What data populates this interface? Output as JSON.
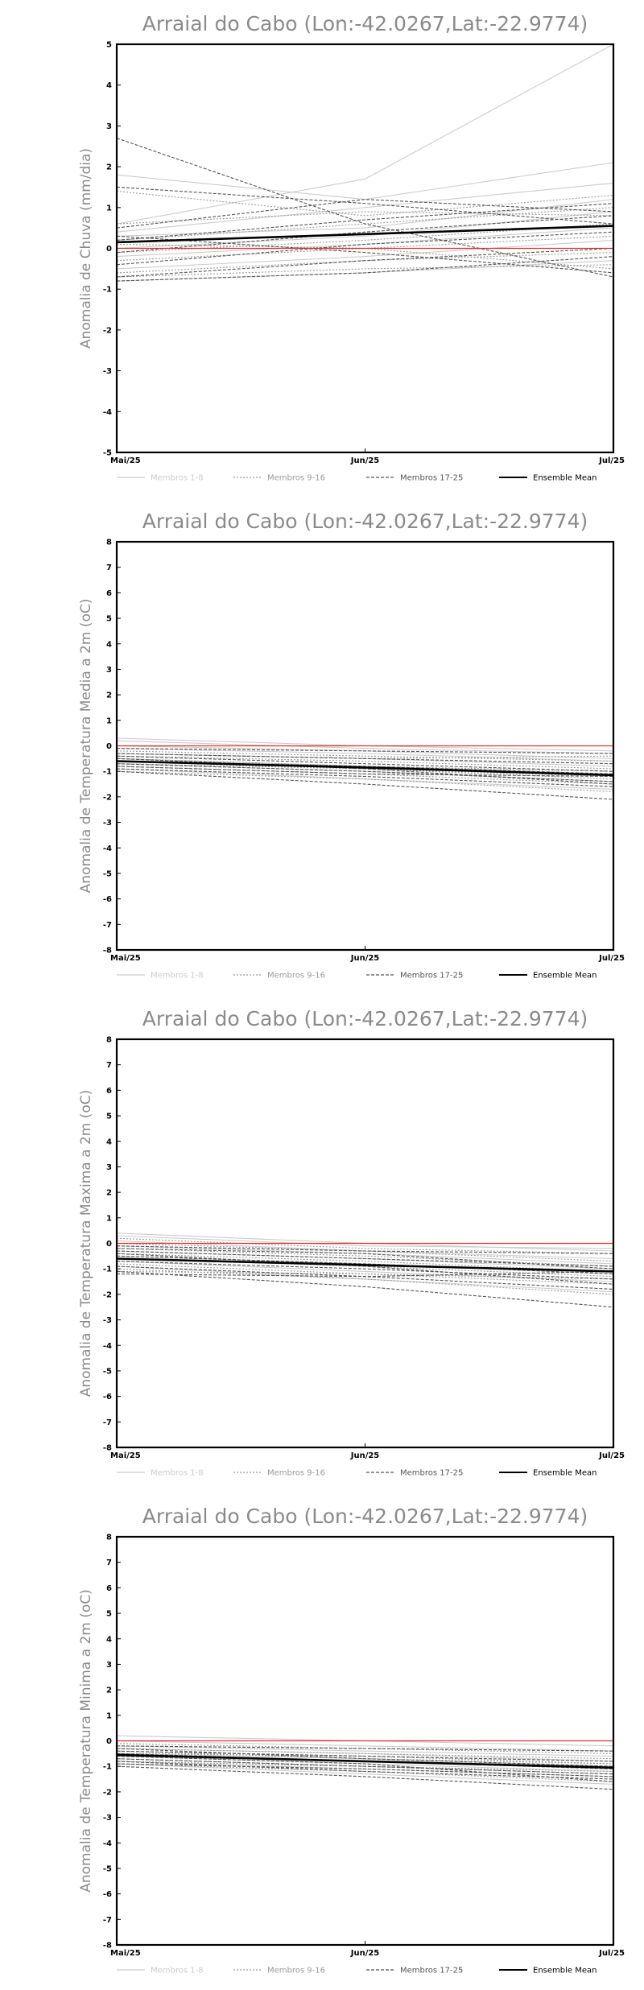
{
  "legend": {
    "items": [
      {
        "label": "Membros 1-8",
        "color": "#cccccc",
        "dash": "none"
      },
      {
        "label": "Membros 9-16",
        "color": "#9a9a9a",
        "dash": "2,2"
      },
      {
        "label": "Membros 17-25",
        "color": "#555555",
        "dash": "4,2"
      },
      {
        "label": "Ensemble Mean",
        "color": "#000000",
        "dash": "none"
      }
    ]
  },
  "chart_data": [
    {
      "type": "line",
      "title": "Arraial do Cabo (Lon:-42.0267,Lat:-22.9774)",
      "ylabel": "Anomalia de Chuva (mm/dia)",
      "categories": [
        "Mai/25",
        "Jun/25",
        "Jul/25"
      ],
      "ylim": [
        -5,
        5
      ],
      "yticks": [
        -5,
        -4,
        -3,
        -2,
        -1,
        0,
        1,
        2,
        3,
        4,
        5
      ],
      "zero_line_color": "#e03030",
      "series": [
        {
          "group": 1,
          "values": [
            0.6,
            1.7,
            5.0
          ]
        },
        {
          "group": 1,
          "values": [
            1.8,
            1.2,
            2.1
          ]
        },
        {
          "group": 1,
          "values": [
            0.4,
            1.0,
            1.6
          ]
        },
        {
          "group": 1,
          "values": [
            0.3,
            0.5,
            1.2
          ]
        },
        {
          "group": 1,
          "values": [
            0.0,
            0.3,
            0.9
          ]
        },
        {
          "group": 1,
          "values": [
            -0.2,
            0.1,
            0.5
          ]
        },
        {
          "group": 1,
          "values": [
            -0.5,
            -0.2,
            0.2
          ]
        },
        {
          "group": 1,
          "values": [
            -0.8,
            -0.6,
            -0.3
          ]
        },
        {
          "group": 2,
          "values": [
            1.4,
            0.8,
            1.3
          ]
        },
        {
          "group": 2,
          "values": [
            0.6,
            0.9,
            0.8
          ]
        },
        {
          "group": 2,
          "values": [
            0.2,
            0.6,
            1.0
          ]
        },
        {
          "group": 2,
          "values": [
            -0.1,
            0.2,
            0.6
          ]
        },
        {
          "group": 2,
          "values": [
            -0.3,
            0.0,
            0.3
          ]
        },
        {
          "group": 2,
          "values": [
            -0.6,
            -0.3,
            -0.1
          ]
        },
        {
          "group": 2,
          "values": [
            -0.7,
            -0.5,
            -0.4
          ]
        },
        {
          "group": 2,
          "values": [
            0.1,
            0.0,
            -0.5
          ]
        },
        {
          "group": 3,
          "values": [
            2.7,
            0.6,
            -0.7
          ]
        },
        {
          "group": 3,
          "values": [
            1.5,
            1.1,
            0.6
          ]
        },
        {
          "group": 3,
          "values": [
            0.5,
            1.2,
            0.9
          ]
        },
        {
          "group": 3,
          "values": [
            0.2,
            0.7,
            1.1
          ]
        },
        {
          "group": 3,
          "values": [
            -0.1,
            0.4,
            0.8
          ]
        },
        {
          "group": 3,
          "values": [
            -0.4,
            0.1,
            0.4
          ]
        },
        {
          "group": 3,
          "values": [
            -0.7,
            -0.3,
            0.0
          ]
        },
        {
          "group": 3,
          "values": [
            0.3,
            -0.1,
            -0.6
          ]
        },
        {
          "group": 3,
          "values": [
            -0.8,
            -0.6,
            -0.2
          ]
        },
        {
          "group": 4,
          "values": [
            0.15,
            0.35,
            0.55
          ]
        }
      ]
    },
    {
      "type": "line",
      "title": "Arraial do Cabo (Lon:-42.0267,Lat:-22.9774)",
      "ylabel": "Anomalia de Temperatura Media a 2m (oC)",
      "categories": [
        "Mai/25",
        "Jun/25",
        "Jul/25"
      ],
      "ylim": [
        -8,
        8
      ],
      "yticks": [
        -8,
        -7,
        -6,
        -5,
        -4,
        -3,
        -2,
        -1,
        0,
        1,
        2,
        3,
        4,
        5,
        6,
        7,
        8
      ],
      "zero_line_color": "#e03030",
      "series": [
        {
          "group": 1,
          "values": [
            0.3,
            0.0,
            -0.2
          ]
        },
        {
          "group": 1,
          "values": [
            0.2,
            -0.1,
            -0.3
          ]
        },
        {
          "group": 1,
          "values": [
            0.0,
            -0.2,
            -0.5
          ]
        },
        {
          "group": 1,
          "values": [
            -0.1,
            -0.3,
            -0.6
          ]
        },
        {
          "group": 1,
          "values": [
            -0.3,
            -0.5,
            -0.8
          ]
        },
        {
          "group": 1,
          "values": [
            -0.5,
            -0.8,
            -1.1
          ]
        },
        {
          "group": 1,
          "values": [
            -0.7,
            -1.0,
            -1.4
          ]
        },
        {
          "group": 1,
          "values": [
            -0.9,
            -1.3,
            -1.7
          ]
        },
        {
          "group": 2,
          "values": [
            -0.2,
            -0.4,
            -0.6
          ]
        },
        {
          "group": 2,
          "values": [
            -0.4,
            -0.6,
            -0.9
          ]
        },
        {
          "group": 2,
          "values": [
            -0.5,
            -0.8,
            -1.0
          ]
        },
        {
          "group": 2,
          "values": [
            -0.6,
            -0.9,
            -1.2
          ]
        },
        {
          "group": 2,
          "values": [
            -0.8,
            -1.1,
            -1.5
          ]
        },
        {
          "group": 2,
          "values": [
            -1.0,
            -1.3,
            -1.8
          ]
        },
        {
          "group": 2,
          "values": [
            -0.3,
            -0.5,
            -0.4
          ]
        },
        {
          "group": 2,
          "values": [
            -0.7,
            -0.9,
            -1.3
          ]
        },
        {
          "group": 3,
          "values": [
            -0.1,
            -0.2,
            -0.3
          ]
        },
        {
          "group": 3,
          "values": [
            -0.3,
            -0.5,
            -0.7
          ]
        },
        {
          "group": 3,
          "values": [
            -0.4,
            -0.7,
            -1.0
          ]
        },
        {
          "group": 3,
          "values": [
            -0.6,
            -0.8,
            -1.1
          ]
        },
        {
          "group": 3,
          "values": [
            -0.7,
            -1.0,
            -1.4
          ]
        },
        {
          "group": 3,
          "values": [
            -0.9,
            -1.2,
            -1.6
          ]
        },
        {
          "group": 3,
          "values": [
            -1.0,
            -1.5,
            -2.1
          ]
        },
        {
          "group": 3,
          "values": [
            -0.5,
            -0.9,
            -1.5
          ]
        },
        {
          "group": 3,
          "values": [
            -0.8,
            -1.1,
            -1.2
          ]
        },
        {
          "group": 4,
          "values": [
            -0.6,
            -0.85,
            -1.15
          ]
        }
      ]
    },
    {
      "type": "line",
      "title": "Arraial do Cabo (Lon:-42.0267,Lat:-22.9774)",
      "ylabel": "Anomalia de Temperatura Maxima a 2m (oC)",
      "categories": [
        "Mai/25",
        "Jun/25",
        "Jul/25"
      ],
      "ylim": [
        -8,
        8
      ],
      "yticks": [
        -8,
        -7,
        -6,
        -5,
        -4,
        -3,
        -2,
        -1,
        0,
        1,
        2,
        3,
        4,
        5,
        6,
        7,
        8
      ],
      "zero_line_color": "#e03030",
      "series": [
        {
          "group": 1,
          "values": [
            0.4,
            0.0,
            -0.3
          ]
        },
        {
          "group": 1,
          "values": [
            0.3,
            -0.1,
            -0.2
          ]
        },
        {
          "group": 1,
          "values": [
            0.1,
            -0.3,
            -0.6
          ]
        },
        {
          "group": 1,
          "values": [
            -0.1,
            -0.4,
            -0.8
          ]
        },
        {
          "group": 1,
          "values": [
            -0.3,
            -0.6,
            -1.0
          ]
        },
        {
          "group": 1,
          "values": [
            -0.5,
            -0.8,
            -1.2
          ]
        },
        {
          "group": 1,
          "values": [
            -0.7,
            -1.1,
            -1.5
          ]
        },
        {
          "group": 1,
          "values": [
            -0.9,
            -1.4,
            -1.9
          ]
        },
        {
          "group": 2,
          "values": [
            0.2,
            -0.2,
            -0.4
          ]
        },
        {
          "group": 2,
          "values": [
            -0.2,
            -0.5,
            -0.9
          ]
        },
        {
          "group": 2,
          "values": [
            -0.4,
            -0.7,
            -1.1
          ]
        },
        {
          "group": 2,
          "values": [
            -0.6,
            -0.9,
            -1.3
          ]
        },
        {
          "group": 2,
          "values": [
            -0.8,
            -1.2,
            -1.6
          ]
        },
        {
          "group": 2,
          "values": [
            -1.0,
            -1.4,
            -2.0
          ]
        },
        {
          "group": 2,
          "values": [
            -1.1,
            -1.2,
            -1.4
          ]
        },
        {
          "group": 2,
          "values": [
            0.0,
            -0.3,
            -0.7
          ]
        },
        {
          "group": 3,
          "values": [
            -0.1,
            -0.3,
            -0.4
          ]
        },
        {
          "group": 3,
          "values": [
            -0.3,
            -0.6,
            -0.9
          ]
        },
        {
          "group": 3,
          "values": [
            -0.5,
            -0.8,
            -1.2
          ]
        },
        {
          "group": 3,
          "values": [
            -0.7,
            -1.0,
            -1.4
          ]
        },
        {
          "group": 3,
          "values": [
            -0.9,
            -1.3,
            -1.8
          ]
        },
        {
          "group": 3,
          "values": [
            -1.1,
            -1.7,
            -2.5
          ]
        },
        {
          "group": 3,
          "values": [
            -0.4,
            -0.9,
            -1.6
          ]
        },
        {
          "group": 3,
          "values": [
            -1.2,
            -1.3,
            -1.1
          ]
        },
        {
          "group": 3,
          "values": [
            -0.2,
            -0.4,
            -1.0
          ]
        },
        {
          "group": 4,
          "values": [
            -0.6,
            -0.85,
            -1.1
          ]
        }
      ]
    },
    {
      "type": "line",
      "title": "Arraial do Cabo (Lon:-42.0267,Lat:-22.9774)",
      "ylabel": "Anomalia de Temperatura Minima a 2m (oC)",
      "categories": [
        "Mai/25",
        "Jun/25",
        "Jul/25"
      ],
      "ylim": [
        -8,
        8
      ],
      "yticks": [
        -8,
        -7,
        -6,
        -5,
        -4,
        -3,
        -2,
        -1,
        0,
        1,
        2,
        3,
        4,
        5,
        6,
        7,
        8
      ],
      "zero_line_color": "#e03030",
      "series": [
        {
          "group": 1,
          "values": [
            0.2,
            0.0,
            -0.2
          ]
        },
        {
          "group": 1,
          "values": [
            0.0,
            -0.2,
            -0.4
          ]
        },
        {
          "group": 1,
          "values": [
            -0.2,
            -0.4,
            -0.6
          ]
        },
        {
          "group": 1,
          "values": [
            -0.3,
            -0.5,
            -0.8
          ]
        },
        {
          "group": 1,
          "values": [
            -0.5,
            -0.7,
            -1.0
          ]
        },
        {
          "group": 1,
          "values": [
            -0.6,
            -0.9,
            -1.2
          ]
        },
        {
          "group": 1,
          "values": [
            -0.8,
            -1.1,
            -1.4
          ]
        },
        {
          "group": 1,
          "values": [
            -0.9,
            -1.3,
            -1.7
          ]
        },
        {
          "group": 2,
          "values": [
            -0.1,
            -0.3,
            -0.5
          ]
        },
        {
          "group": 2,
          "values": [
            -0.3,
            -0.5,
            -0.7
          ]
        },
        {
          "group": 2,
          "values": [
            -0.4,
            -0.7,
            -0.9
          ]
        },
        {
          "group": 2,
          "values": [
            -0.6,
            -0.8,
            -1.1
          ]
        },
        {
          "group": 2,
          "values": [
            -0.7,
            -1.0,
            -1.3
          ]
        },
        {
          "group": 2,
          "values": [
            -0.9,
            -1.2,
            -1.6
          ]
        },
        {
          "group": 2,
          "values": [
            -0.5,
            -0.6,
            -0.9
          ]
        },
        {
          "group": 2,
          "values": [
            -0.8,
            -1.0,
            -1.2
          ]
        },
        {
          "group": 3,
          "values": [
            -0.2,
            -0.3,
            -0.4
          ]
        },
        {
          "group": 3,
          "values": [
            -0.4,
            -0.6,
            -0.8
          ]
        },
        {
          "group": 3,
          "values": [
            -0.5,
            -0.8,
            -1.1
          ]
        },
        {
          "group": 3,
          "values": [
            -0.7,
            -1.0,
            -1.3
          ]
        },
        {
          "group": 3,
          "values": [
            -0.8,
            -1.2,
            -1.5
          ]
        },
        {
          "group": 3,
          "values": [
            -1.0,
            -1.4,
            -1.9
          ]
        },
        {
          "group": 3,
          "values": [
            -0.3,
            -0.7,
            -1.0
          ]
        },
        {
          "group": 3,
          "values": [
            -0.9,
            -1.1,
            -1.4
          ]
        },
        {
          "group": 3,
          "values": [
            -0.6,
            -0.9,
            -1.6
          ]
        },
        {
          "group": 4,
          "values": [
            -0.55,
            -0.8,
            -1.05
          ]
        }
      ]
    }
  ]
}
